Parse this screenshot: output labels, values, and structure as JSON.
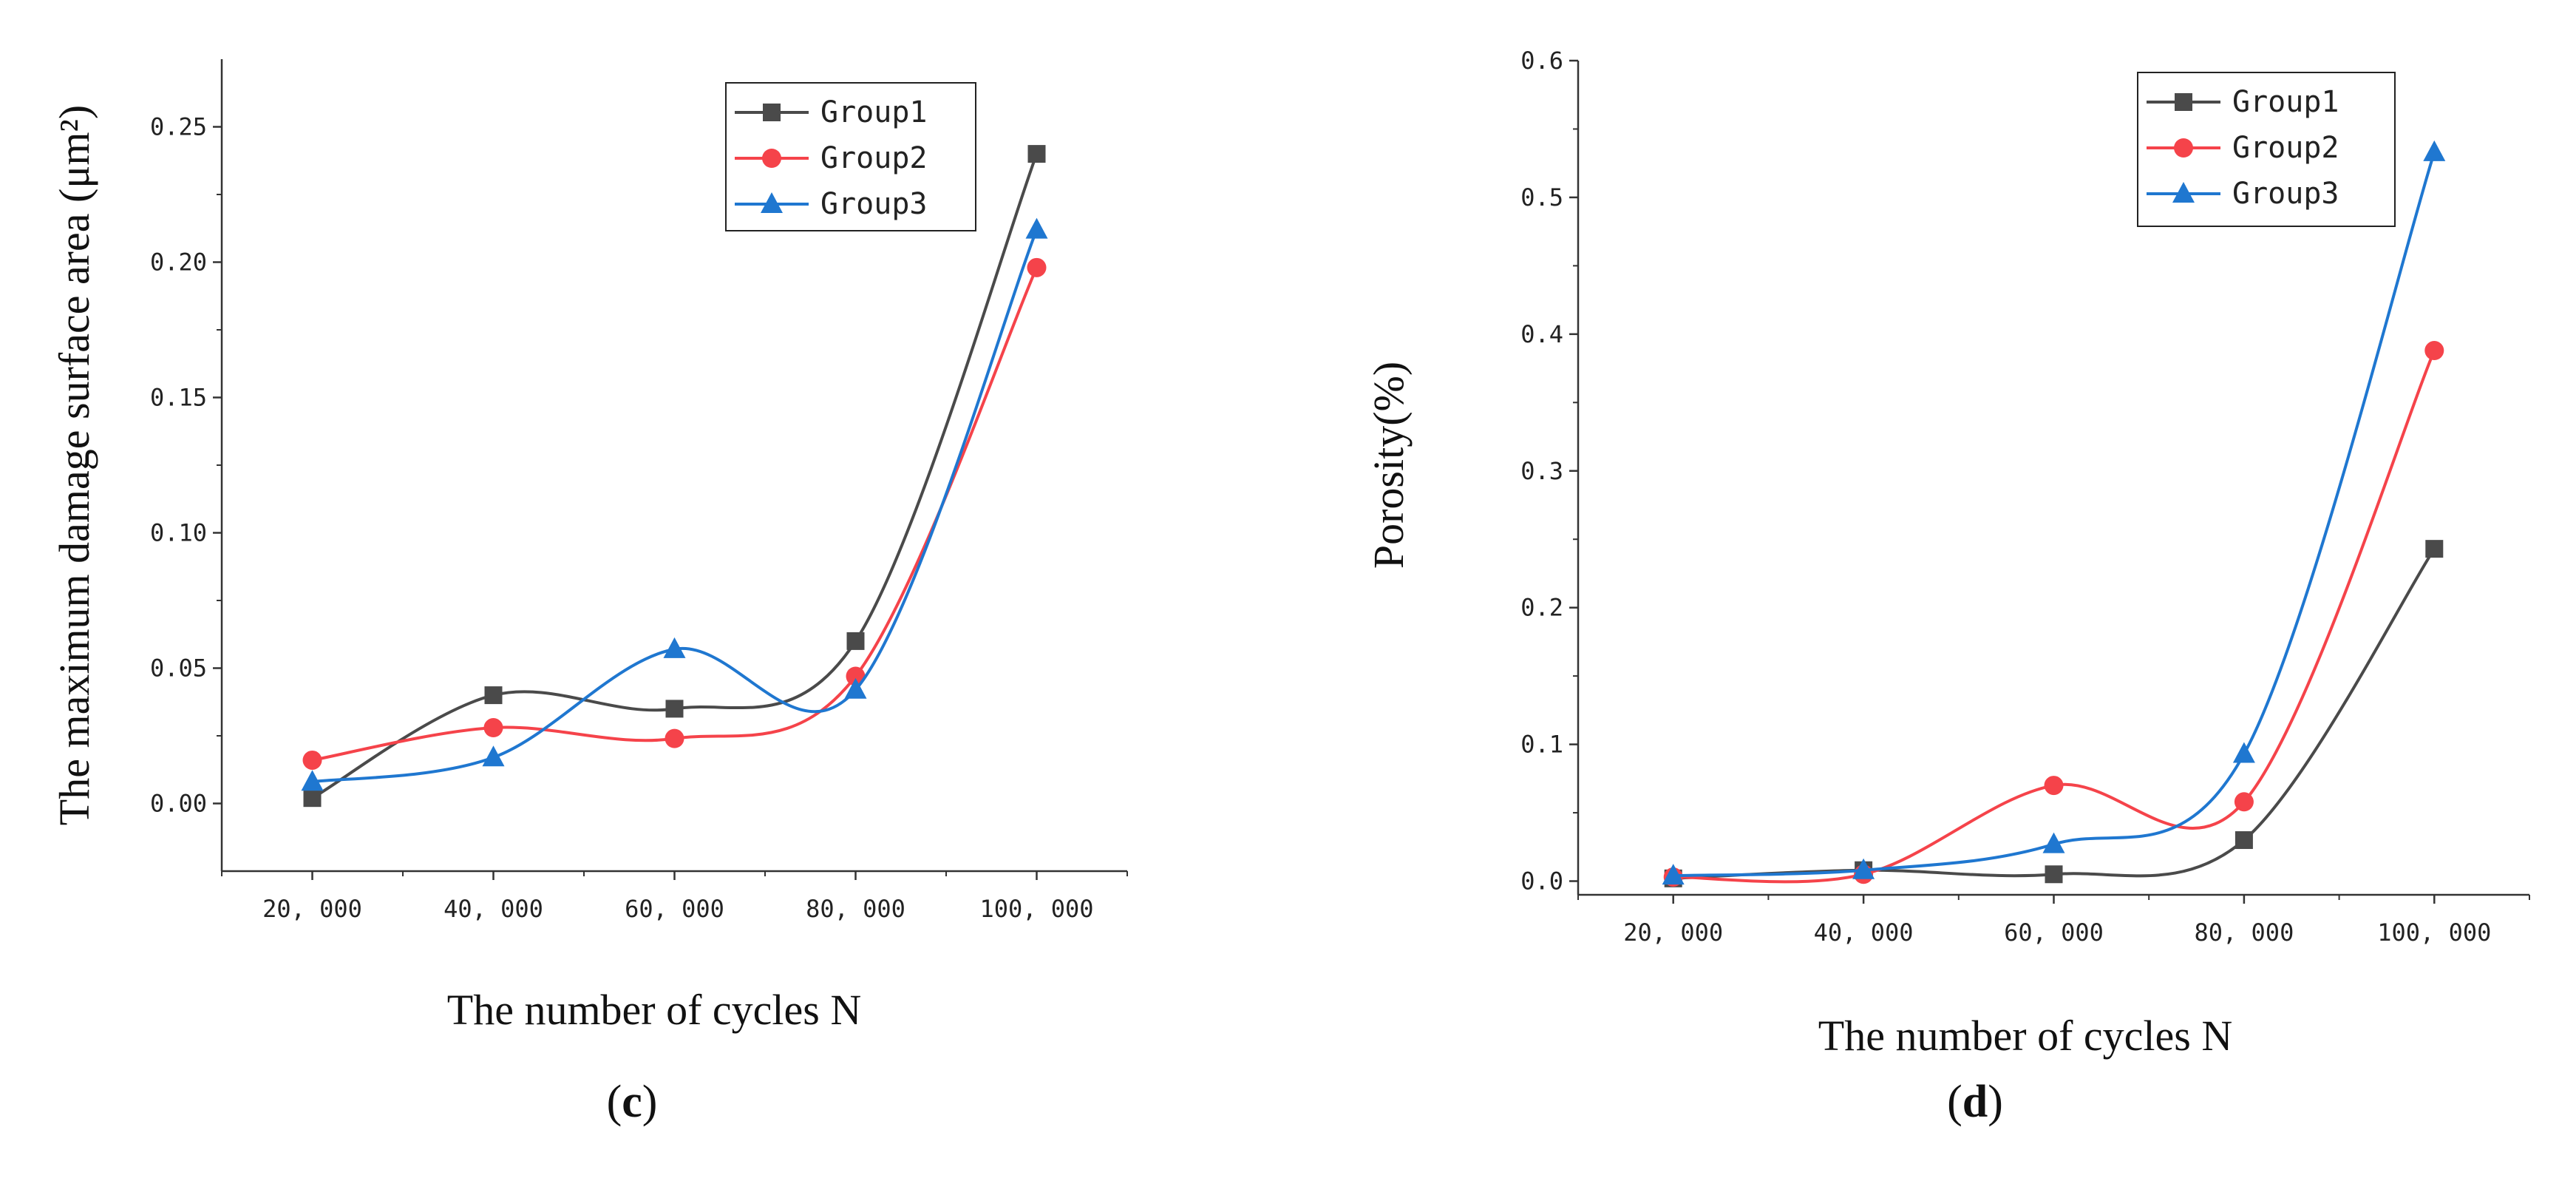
{
  "chart_data": [
    {
      "type": "line",
      "panel": "c",
      "caption": {
        "prefix": "(",
        "letter": "c",
        "suffix": ")"
      },
      "xlabel": "The number of cycles N",
      "ylabel": "The maximum damage surface area (μm²)",
      "categories": [
        "20, 000",
        "40, 000",
        "60, 000",
        "80, 000",
        "100, 000"
      ],
      "x": [
        20000,
        40000,
        60000,
        80000,
        100000
      ],
      "xlim": [
        10000,
        110000
      ],
      "ylim": [
        -0.025,
        0.275
      ],
      "yticks": [
        0,
        0.05,
        0.1,
        0.15,
        0.2,
        0.25
      ],
      "ytick_labels": [
        "0.00",
        "0.05",
        "0.10",
        "0.15",
        "0.20",
        "0.25"
      ],
      "legend_position": "top-right",
      "series": [
        {
          "name": "Group1",
          "color": "#4a4a4a",
          "marker": "square",
          "values": [
            0.002,
            0.04,
            0.035,
            0.06,
            0.24
          ]
        },
        {
          "name": "Group2",
          "color": "#f5434a",
          "marker": "circle",
          "values": [
            0.016,
            0.028,
            0.024,
            0.047,
            0.198
          ]
        },
        {
          "name": "Group3",
          "color": "#1f77d0",
          "marker": "triangle",
          "values": [
            0.008,
            0.017,
            0.057,
            0.042,
            0.212
          ]
        }
      ]
    },
    {
      "type": "line",
      "panel": "d",
      "caption": {
        "prefix": "(",
        "letter": "d",
        "suffix": ")"
      },
      "xlabel": "The number of cycles N",
      "ylabel": "Porosity(%)",
      "categories": [
        "20, 000",
        "40, 000",
        "60, 000",
        "80, 000",
        "100, 000"
      ],
      "x": [
        20000,
        40000,
        60000,
        80000,
        100000
      ],
      "xlim": [
        10000,
        110000
      ],
      "ylim": [
        -0.01,
        0.6
      ],
      "yticks": [
        0,
        0.1,
        0.2,
        0.3,
        0.4,
        0.5,
        0.6
      ],
      "ytick_labels": [
        "0.0",
        "0.1",
        "0.2",
        "0.3",
        "0.4",
        "0.5",
        "0.6"
      ],
      "legend_position": "top-right",
      "series": [
        {
          "name": "Group1",
          "color": "#4a4a4a",
          "marker": "square",
          "values": [
            0.002,
            0.008,
            0.005,
            0.03,
            0.243
          ]
        },
        {
          "name": "Group2",
          "color": "#f5434a",
          "marker": "circle",
          "values": [
            0.003,
            0.005,
            0.07,
            0.058,
            0.388
          ]
        },
        {
          "name": "Group3",
          "color": "#1f77d0",
          "marker": "triangle",
          "values": [
            0.004,
            0.008,
            0.027,
            0.093,
            0.533
          ]
        }
      ]
    }
  ]
}
